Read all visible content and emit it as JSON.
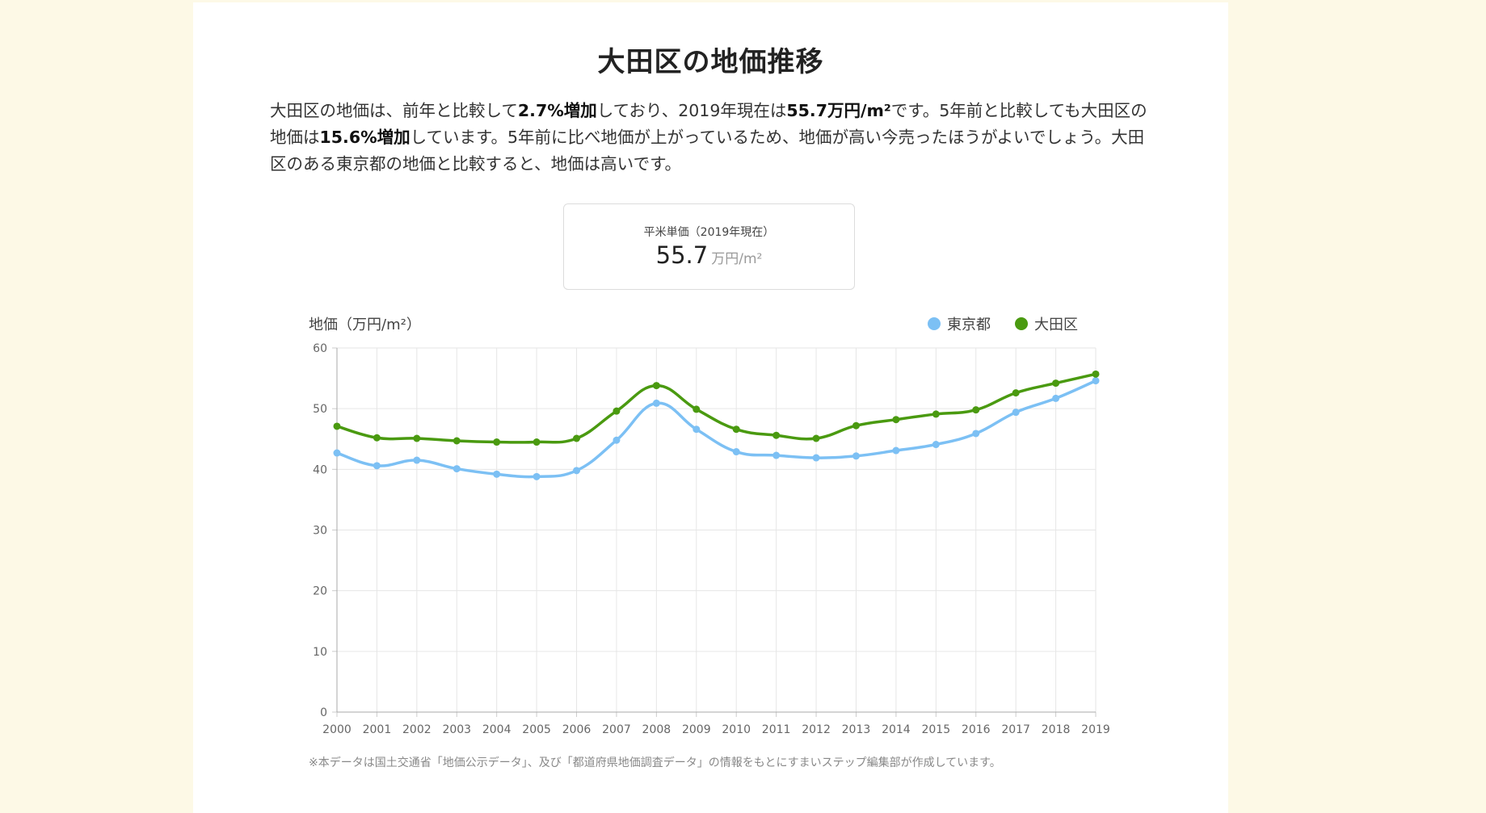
{
  "page": {
    "title": "大田区の地価推移",
    "description": {
      "p1": "大田区の地価は、前年と比較して",
      "b1": "2.7%増加",
      "p2": "しており、2019年現在は",
      "b2": "55.7万円/m²",
      "p3": "です。5年前と比較しても大田区の地価は",
      "b3": "15.6%増加",
      "p4": "しています。5年前に比べ地価が上がっているため、地価が高い今売ったほうがよいでしょう。大田区のある東京都の地価と比較すると、地価は高いです。"
    },
    "stat_box": {
      "label": "平米単価（2019年現在）",
      "value": "55.7",
      "unit": "万円/m²"
    },
    "footnote": "※本データは国土交通省「地価公示データ」、及び「都道府県地価調査データ」の情報をもとにすまいステップ編集部が作成しています。"
  },
  "chart_data": {
    "type": "line",
    "ylabel": "地価（万円/m²）",
    "x": [
      "2000",
      "2001",
      "2002",
      "2003",
      "2004",
      "2005",
      "2006",
      "2007",
      "2008",
      "2009",
      "2010",
      "2011",
      "2012",
      "2013",
      "2014",
      "2015",
      "2016",
      "2017",
      "2018",
      "2019"
    ],
    "ylim": [
      0,
      60
    ],
    "yticks": [
      0,
      10,
      20,
      30,
      40,
      50,
      60
    ],
    "grid": true,
    "legend_position": "top-right",
    "series": [
      {
        "name": "東京都",
        "color": "#7cc0f4",
        "values": [
          42.7,
          40.6,
          41.5,
          40.1,
          39.2,
          38.8,
          39.8,
          44.8,
          50.9,
          46.6,
          42.9,
          42.3,
          41.9,
          42.2,
          43.1,
          44.1,
          45.9,
          49.4,
          51.7,
          54.6
        ]
      },
      {
        "name": "大田区",
        "color": "#4a9a10",
        "values": [
          47.1,
          45.2,
          45.1,
          44.7,
          44.5,
          44.5,
          45.1,
          49.6,
          53.8,
          49.9,
          46.6,
          45.6,
          45.1,
          47.2,
          48.2,
          49.1,
          49.8,
          52.6,
          54.2,
          55.7
        ]
      }
    ]
  }
}
